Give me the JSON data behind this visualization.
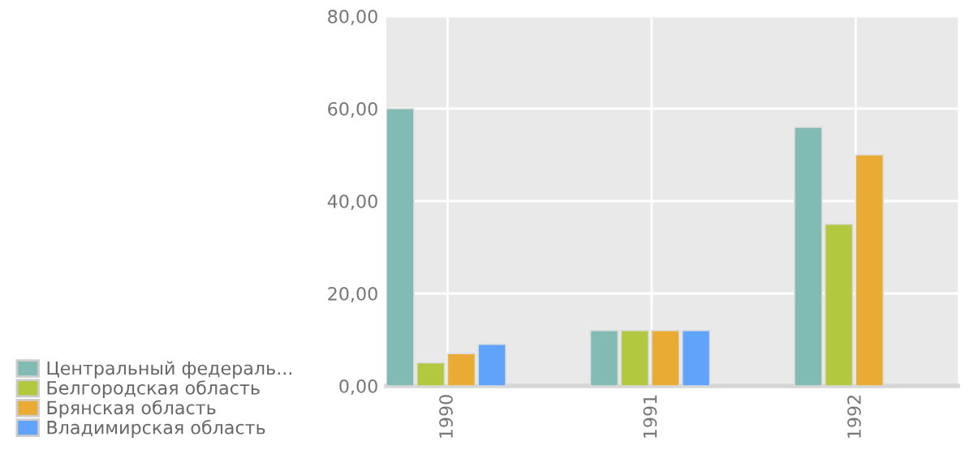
{
  "chart_data": {
    "type": "bar",
    "categories": [
      "1990",
      "1991",
      "1992"
    ],
    "series": [
      {
        "name": "Центральный федераль...",
        "color": "#82bab4",
        "values": [
          60,
          12,
          56
        ]
      },
      {
        "name": "Белгородская область",
        "color": "#b2c93f",
        "values": [
          5,
          12,
          35
        ]
      },
      {
        "name": "Брянская область",
        "color": "#e9ab33",
        "values": [
          7,
          12,
          50
        ]
      },
      {
        "name": "Владимирская область",
        "color": "#5fa3fa",
        "values": [
          9,
          12,
          null
        ]
      }
    ],
    "ylim": [
      0,
      80
    ],
    "yticks": [
      {
        "value": 0,
        "label": "0,00"
      },
      {
        "value": 20,
        "label": "20,00"
      },
      {
        "value": 40,
        "label": "40,00"
      },
      {
        "value": 60,
        "label": "60,00"
      },
      {
        "value": 80,
        "label": "80,00"
      }
    ],
    "grid": true,
    "legend": "bottom left"
  }
}
